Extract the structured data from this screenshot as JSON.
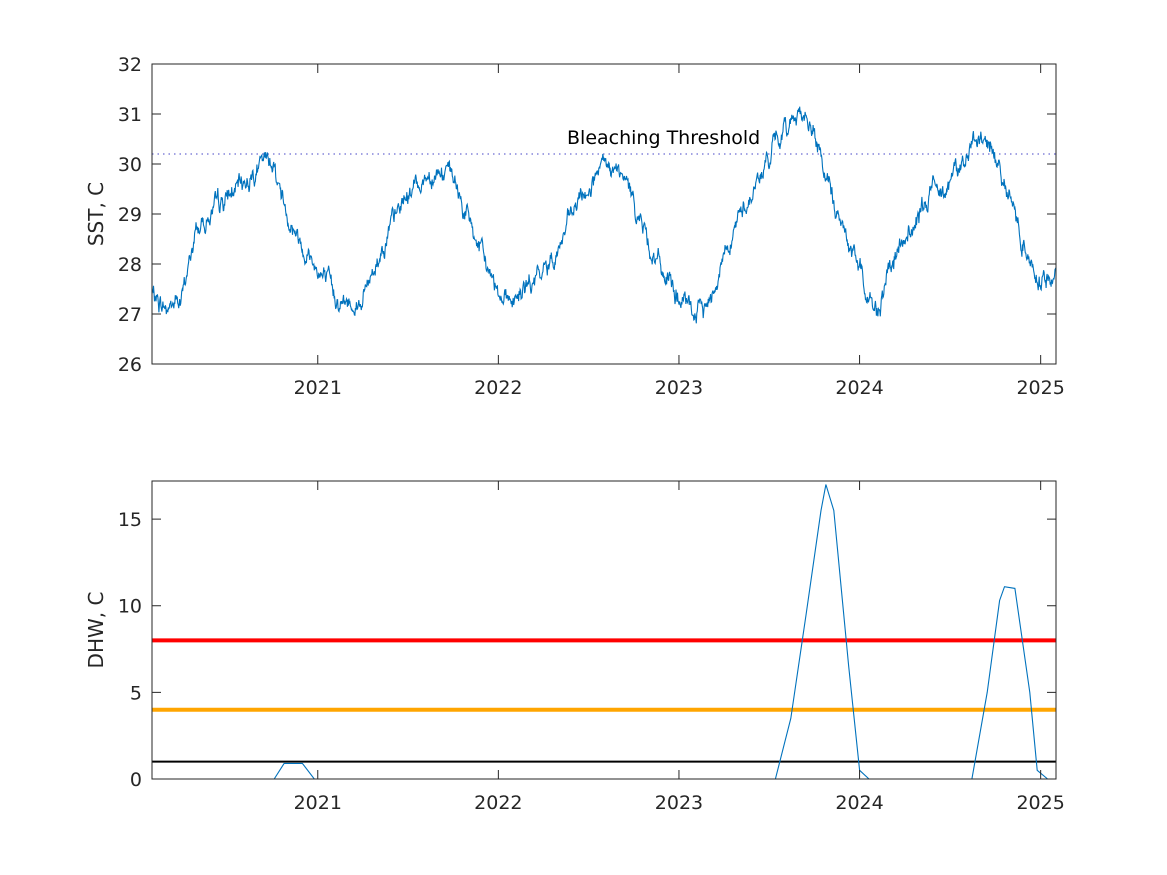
{
  "colors": {
    "series": "#0072bd",
    "threshold": "#6a6ad2",
    "alert_red": "#ff0000",
    "alert_orange": "#ffa500",
    "alert_black": "#000000",
    "axis": "#262626"
  },
  "chart_data": [
    {
      "type": "line",
      "title": "",
      "xlabel": "",
      "ylabel": "SST, C",
      "xlim": [
        "2020-02-01",
        "2025-02-01"
      ],
      "ylim": [
        26,
        32
      ],
      "x_ticks": [
        "2021",
        "2022",
        "2023",
        "2024",
        "2025"
      ],
      "y_ticks": [
        "26",
        "27",
        "28",
        "29",
        "30",
        "31",
        "32"
      ],
      "grid": false,
      "annotations": [
        {
          "text": "Bleaching Threshold",
          "x": "2022-12-01",
          "y": 30.4
        }
      ],
      "reference_lines": [
        {
          "y": 30.2,
          "style": "dotted",
          "color": "#6a6ad2"
        }
      ],
      "series": [
        {
          "x": [
            "2020-02-01",
            "2020-03-01",
            "2020-04-01",
            "2020-05-01",
            "2020-06-01",
            "2020-07-01",
            "2020-08-01",
            "2020-09-01",
            "2020-10-01",
            "2020-11-01",
            "2020-12-01",
            "2021-01-01",
            "2021-02-01",
            "2021-03-01",
            "2021-04-01",
            "2021-05-01",
            "2021-06-01",
            "2021-07-01",
            "2021-08-01",
            "2021-09-01",
            "2021-10-01",
            "2021-11-01",
            "2021-12-01",
            "2022-01-01",
            "2022-02-01",
            "2022-03-01",
            "2022-04-01",
            "2022-05-01",
            "2022-06-01",
            "2022-07-01",
            "2022-08-01",
            "2022-09-01",
            "2022-10-01",
            "2022-11-01",
            "2022-12-01",
            "2023-01-01",
            "2023-02-01",
            "2023-03-01",
            "2023-04-01",
            "2023-05-01",
            "2023-06-01",
            "2023-07-01",
            "2023-08-01",
            "2023-09-01",
            "2023-10-01",
            "2023-11-01",
            "2023-12-01",
            "2024-01-01",
            "2024-02-01",
            "2024-03-01",
            "2024-04-01",
            "2024-05-01",
            "2024-06-01",
            "2024-07-01",
            "2024-08-01",
            "2024-09-01",
            "2024-10-01",
            "2024-11-01",
            "2024-12-01",
            "2025-01-01",
            "2025-02-01"
          ],
          "values": [
            27.4,
            27.1,
            27.3,
            28.7,
            29.0,
            29.3,
            29.6,
            29.9,
            30.1,
            29.0,
            28.4,
            27.9,
            27.4,
            27.2,
            27.3,
            28.1,
            28.8,
            29.4,
            29.7,
            29.9,
            29.7,
            28.9,
            28.1,
            27.5,
            27.3,
            27.5,
            27.8,
            28.3,
            29.0,
            29.5,
            29.9,
            29.8,
            29.3,
            28.4,
            27.8,
            27.3,
            27.0,
            27.2,
            28.2,
            28.9,
            29.5,
            30.1,
            30.7,
            31.1,
            30.6,
            29.5,
            28.6,
            27.9,
            27.0,
            27.8,
            28.5,
            28.9,
            29.6,
            29.7,
            30.1,
            30.5,
            30.2,
            29.3,
            28.3,
            27.7,
            27.7
          ],
          "noise": 0.18
        }
      ]
    },
    {
      "type": "line",
      "title": "",
      "xlabel": "",
      "ylabel": "DHW, C",
      "xlim": [
        "2020-02-01",
        "2025-02-01"
      ],
      "ylim": [
        0,
        17.2
      ],
      "x_ticks": [
        "2021",
        "2022",
        "2023",
        "2024",
        "2025"
      ],
      "y_ticks": [
        "0",
        "5",
        "10",
        "15"
      ],
      "grid": false,
      "reference_lines": [
        {
          "y": 8,
          "style": "solid",
          "color": "#ff0000"
        },
        {
          "y": 4,
          "style": "solid",
          "color": "#ffa500"
        },
        {
          "y": 1,
          "style": "solid",
          "color": "#000000"
        }
      ],
      "series": [
        {
          "x": [
            "2020-02-01",
            "2020-10-05",
            "2020-10-25",
            "2020-12-01",
            "2020-12-25",
            "2021-01-01",
            "2023-07-15",
            "2023-08-15",
            "2023-09-15",
            "2023-10-15",
            "2023-10-25",
            "2023-11-10",
            "2023-12-10",
            "2024-01-01",
            "2024-01-20",
            "2024-08-15",
            "2024-09-15",
            "2024-10-10",
            "2024-10-20",
            "2024-11-10",
            "2024-12-10",
            "2024-12-25",
            "2025-01-15"
          ],
          "values": [
            0,
            0,
            0.9,
            0.9,
            0,
            0,
            0,
            3.5,
            9.5,
            15.5,
            17.0,
            15.5,
            6.5,
            0.5,
            0,
            0,
            5.0,
            10.3,
            11.1,
            11.0,
            5.0,
            0.5,
            0
          ]
        }
      ]
    }
  ]
}
